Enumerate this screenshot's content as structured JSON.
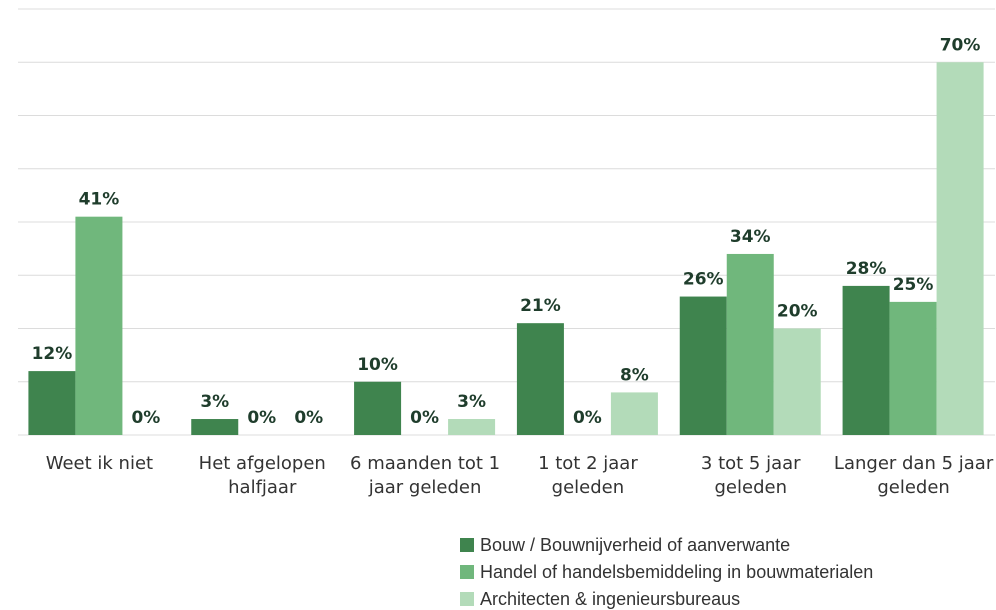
{
  "chart_data": {
    "type": "bar",
    "categories": [
      "Weet ik niet",
      "Het afgelopen halfjaar",
      "6 maanden tot 1 jaar geleden",
      "1 tot 2 jaar geleden",
      "3 tot 5 jaar geleden",
      "Langer dan 5 jaar geleden"
    ],
    "series": [
      {
        "name": "Bouw / Bouwnijverheid of aanverwante",
        "color": "#3f844e",
        "values": [
          12,
          3,
          10,
          21,
          26,
          28
        ],
        "value_labels": [
          "12%",
          "3%",
          "10%",
          "21%",
          "26%",
          "28%"
        ]
      },
      {
        "name": "Handel of handelsbemiddeling in bouwmaterialen",
        "color": "#70b77c",
        "values": [
          41,
          0,
          0,
          0,
          34,
          25
        ],
        "value_labels": [
          "41%",
          "0%",
          "0%",
          "0%",
          "34%",
          "25%"
        ]
      },
      {
        "name": "Architecten & ingenieursbureaus",
        "color": "#b3dbb9",
        "values": [
          0,
          0,
          3,
          8,
          20,
          70
        ],
        "value_labels": [
          "0%",
          "0%",
          "3%",
          "8%",
          "20%",
          "70%"
        ]
      }
    ],
    "ylim": [
      0,
      80
    ],
    "yticks": [
      0,
      10,
      20,
      30,
      40,
      50,
      60,
      70,
      80
    ],
    "grid": true
  }
}
